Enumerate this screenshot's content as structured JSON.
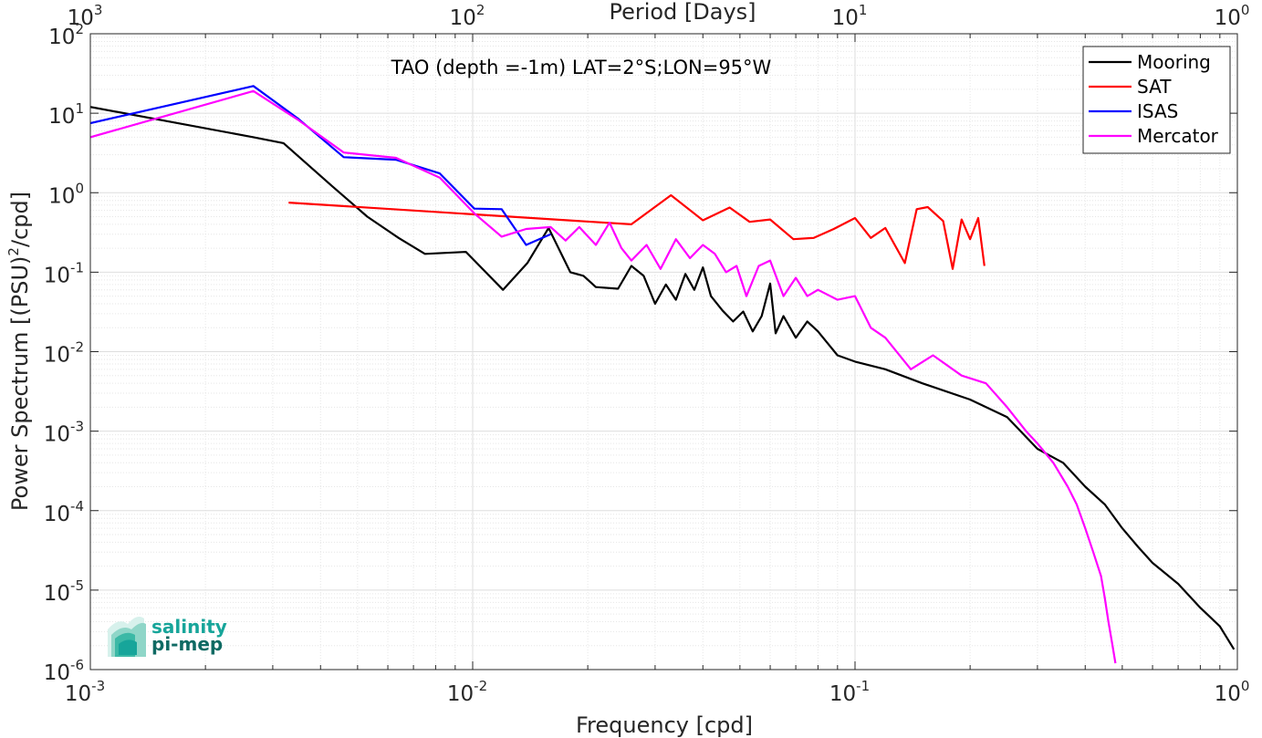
{
  "chart_data": {
    "type": "line",
    "title": "TAO (depth =-1m) LAT=2°S;LON=95°W",
    "xlabel": "Frequency [cpd]",
    "ylabel": "Power Spectrum [(PSU)^2/cpd]",
    "ylabel_main": "Power Spectrum [(PSU)",
    "ylabel_sup": "2",
    "ylabel_tail": "/cpd]",
    "top_xlabel": "Period [Days]",
    "x_scale": "log",
    "y_scale": "log",
    "xlim": [
      0.001,
      1
    ],
    "ylim": [
      1e-06,
      100
    ],
    "top_xlim": [
      1000,
      1
    ],
    "grid": true,
    "legend_position": "top-right",
    "x_ticks": [
      {
        "value": 0.001,
        "base": "10",
        "exp": "-3"
      },
      {
        "value": 0.01,
        "base": "10",
        "exp": "-2"
      },
      {
        "value": 0.1,
        "base": "10",
        "exp": "-1"
      },
      {
        "value": 1,
        "base": "10",
        "exp": "0"
      }
    ],
    "y_ticks": [
      {
        "value": 100,
        "base": "10",
        "exp": "2"
      },
      {
        "value": 10,
        "base": "10",
        "exp": "1"
      },
      {
        "value": 1,
        "base": "10",
        "exp": "0"
      },
      {
        "value": 0.1,
        "base": "10",
        "exp": "-1"
      },
      {
        "value": 0.01,
        "base": "10",
        "exp": "-2"
      },
      {
        "value": 0.001,
        "base": "10",
        "exp": "-3"
      },
      {
        "value": 0.0001,
        "base": "10",
        "exp": "-4"
      },
      {
        "value": 1e-05,
        "base": "10",
        "exp": "-5"
      },
      {
        "value": 1e-06,
        "base": "10",
        "exp": "-6"
      }
    ],
    "top_ticks": [
      {
        "freq": 0.001,
        "base": "10",
        "exp": "3"
      },
      {
        "freq": 0.01,
        "base": "10",
        "exp": "2"
      },
      {
        "freq": 0.1,
        "base": "10",
        "exp": "1"
      },
      {
        "freq": 1,
        "base": "10",
        "exp": "0"
      }
    ],
    "series": [
      {
        "name": "Mooring",
        "color": "#000000",
        "x": [
          0.001,
          0.00267,
          0.0032,
          0.0043,
          0.0053,
          0.0064,
          0.0075,
          0.0096,
          0.012,
          0.0139,
          0.0158,
          0.018,
          0.0195,
          0.021,
          0.024,
          0.026,
          0.028,
          0.03,
          0.032,
          0.034,
          0.036,
          0.038,
          0.04,
          0.042,
          0.045,
          0.048,
          0.051,
          0.054,
          0.057,
          0.06,
          0.062,
          0.065,
          0.07,
          0.075,
          0.08,
          0.09,
          0.1,
          0.12,
          0.15,
          0.2,
          0.25,
          0.3,
          0.35,
          0.4,
          0.45,
          0.5,
          0.55,
          0.6,
          0.7,
          0.8,
          0.9,
          0.98
        ],
        "y": [
          12,
          5,
          4.2,
          1.2,
          0.5,
          0.27,
          0.17,
          0.18,
          0.06,
          0.13,
          0.36,
          0.1,
          0.09,
          0.065,
          0.062,
          0.12,
          0.09,
          0.04,
          0.07,
          0.045,
          0.095,
          0.06,
          0.115,
          0.05,
          0.033,
          0.024,
          0.032,
          0.018,
          0.028,
          0.072,
          0.017,
          0.028,
          0.015,
          0.024,
          0.018,
          0.009,
          0.0075,
          0.006,
          0.004,
          0.0025,
          0.0015,
          0.0006,
          0.0004,
          0.0002,
          0.00012,
          6e-05,
          3.5e-05,
          2.2e-05,
          1.2e-05,
          6e-06,
          3.5e-06,
          1.8e-06
        ]
      },
      {
        "name": "SAT",
        "color": "#ff0000",
        "x": [
          0.0033,
          0.026,
          0.033,
          0.04,
          0.047,
          0.053,
          0.06,
          0.069,
          0.078,
          0.088,
          0.1,
          0.11,
          0.12,
          0.135,
          0.145,
          0.155,
          0.17,
          0.18,
          0.19,
          0.2,
          0.21,
          0.218
        ],
        "y": [
          0.75,
          0.4,
          0.93,
          0.45,
          0.65,
          0.43,
          0.46,
          0.26,
          0.27,
          0.35,
          0.48,
          0.27,
          0.36,
          0.13,
          0.62,
          0.66,
          0.44,
          0.11,
          0.46,
          0.26,
          0.48,
          0.12
        ]
      },
      {
        "name": "ISAS",
        "color": "#0000ff",
        "x": [
          0.001,
          0.00267,
          0.0035,
          0.0046,
          0.0063,
          0.0082,
          0.0101,
          0.0119,
          0.0138,
          0.016
        ],
        "y": [
          7.5,
          22,
          8.5,
          2.8,
          2.6,
          1.75,
          0.63,
          0.62,
          0.22,
          0.3
        ]
      },
      {
        "name": "Mercator",
        "color": "#ff00ff",
        "x": [
          0.001,
          0.00267,
          0.0035,
          0.0046,
          0.0063,
          0.0082,
          0.0101,
          0.0119,
          0.0138,
          0.016,
          0.0175,
          0.019,
          0.021,
          0.0228,
          0.0245,
          0.026,
          0.0285,
          0.031,
          0.034,
          0.037,
          0.04,
          0.043,
          0.046,
          0.049,
          0.052,
          0.056,
          0.06,
          0.065,
          0.07,
          0.075,
          0.08,
          0.09,
          0.1,
          0.11,
          0.12,
          0.14,
          0.16,
          0.19,
          0.22,
          0.25,
          0.28,
          0.3,
          0.33,
          0.36,
          0.38,
          0.4,
          0.42,
          0.44,
          0.45,
          0.46,
          0.47,
          0.48
        ],
        "y": [
          5,
          19,
          8.2,
          3.2,
          2.75,
          1.55,
          0.55,
          0.28,
          0.35,
          0.37,
          0.25,
          0.37,
          0.22,
          0.42,
          0.2,
          0.14,
          0.22,
          0.11,
          0.26,
          0.15,
          0.22,
          0.17,
          0.1,
          0.12,
          0.05,
          0.12,
          0.14,
          0.05,
          0.085,
          0.05,
          0.06,
          0.045,
          0.05,
          0.02,
          0.015,
          0.006,
          0.009,
          0.005,
          0.004,
          0.002,
          0.001,
          0.0007,
          0.0004,
          0.0002,
          0.00012,
          6e-05,
          3e-05,
          1.5e-05,
          8e-06,
          4e-06,
          2.2e-06,
          1.2e-06
        ]
      }
    ]
  },
  "logo": {
    "line1": "salinity",
    "line2": "pi-mep",
    "color": "#17a59a"
  }
}
